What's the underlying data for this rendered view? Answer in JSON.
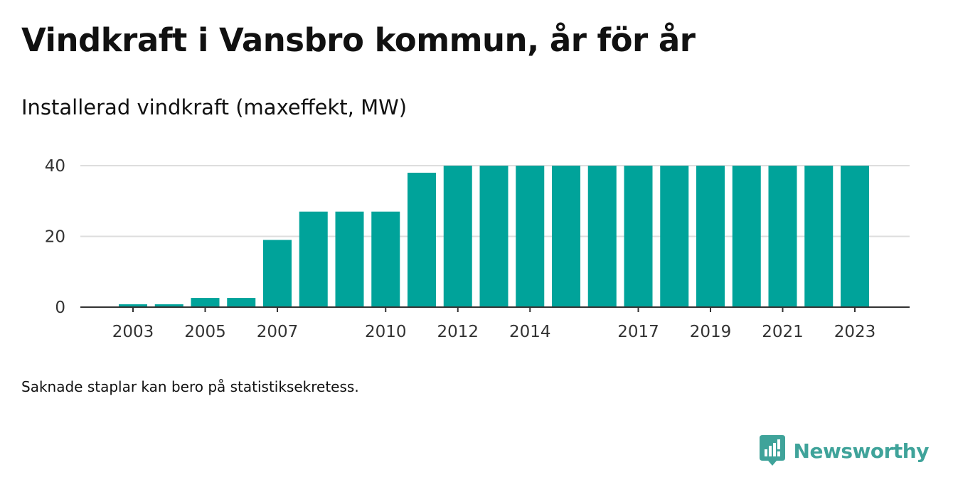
{
  "title": "Vindkraft i Vansbro kommun, år för år",
  "subtitle": "Installerad vindkraft (maxeffekt, MW)",
  "note": "Saknade staplar kan bero på statistiksekretess.",
  "brand": {
    "name": "Newsworthy",
    "icon": "newsworthy-logo-icon",
    "color": "#3fa39a"
  },
  "colors": {
    "bar": "#00a39a",
    "grid": "#dddddd",
    "axis": "#333333"
  },
  "chart_data": {
    "type": "bar",
    "categories": [
      "2003",
      "2004",
      "2005",
      "2006",
      "2007",
      "2008",
      "2009",
      "2010",
      "2011",
      "2012",
      "2013",
      "2014",
      "2015",
      "2016",
      "2017",
      "2018",
      "2019",
      "2020",
      "2021",
      "2022",
      "2023"
    ],
    "values": [
      0.8,
      0.8,
      2.6,
      2.6,
      19,
      27,
      27,
      27,
      38,
      40,
      40,
      40,
      40,
      40,
      40,
      40,
      40,
      40,
      40,
      40,
      40
    ],
    "x_tick_labels": [
      "2003",
      "2005",
      "2007",
      "2010",
      "2012",
      "2014",
      "2017",
      "2019",
      "2021",
      "2023"
    ],
    "y_ticks": [
      0,
      20,
      40
    ],
    "ylim": [
      0,
      40
    ],
    "grid": true,
    "legend": "none"
  }
}
